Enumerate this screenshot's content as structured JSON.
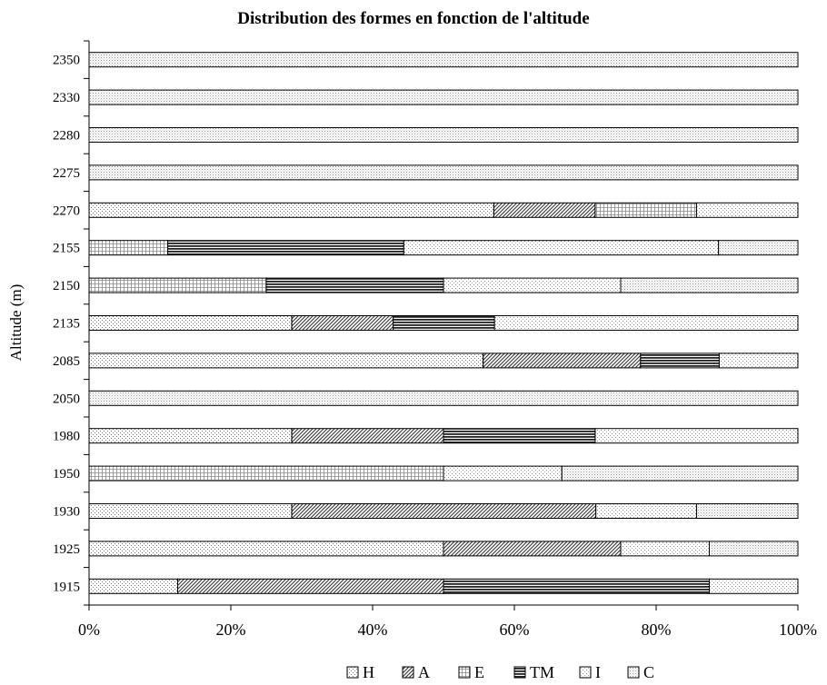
{
  "chart_data": {
    "type": "bar",
    "orientation": "horizontal",
    "stacked": "percent",
    "title": "Distribution des formes en fonction de l'altitude",
    "ylabel": "Altitude (m)",
    "xlabel": "",
    "xlim": [
      0,
      100
    ],
    "x_ticks": [
      "0%",
      "20%",
      "40%",
      "60%",
      "80%",
      "100%"
    ],
    "grid": false,
    "legend_position": "bottom",
    "categories": [
      "2350",
      "2330",
      "2280",
      "2275",
      "2270",
      "2155",
      "2150",
      "2135",
      "2085",
      "2050",
      "1980",
      "1950",
      "1930",
      "1925",
      "1915"
    ],
    "series": [
      {
        "name": "H",
        "pattern": "dots",
        "values": [
          0,
          0,
          0,
          0,
          57.1,
          0,
          0,
          28.6,
          55.6,
          0,
          28.6,
          0,
          28.6,
          50,
          12.5
        ]
      },
      {
        "name": "A",
        "pattern": "diagonal",
        "values": [
          0,
          0,
          0,
          0,
          14.3,
          0,
          0,
          14.3,
          22.2,
          0,
          21.4,
          0,
          42.9,
          25,
          37.5
        ]
      },
      {
        "name": "E",
        "pattern": "grid",
        "values": [
          0,
          0,
          0,
          0,
          14.3,
          11.1,
          25,
          0,
          0,
          0,
          0,
          50,
          0,
          0,
          0
        ]
      },
      {
        "name": "TM",
        "pattern": "horizontal",
        "values": [
          0,
          0,
          0,
          0,
          0,
          33.3,
          25,
          14.3,
          11.1,
          0,
          21.4,
          0,
          0,
          0,
          37.5
        ]
      },
      {
        "name": "I",
        "pattern": "light-dots",
        "values": [
          0,
          0,
          0,
          0,
          14.3,
          44.4,
          25,
          42.8,
          11.1,
          0,
          28.6,
          16.7,
          14.2,
          12.5,
          12.5
        ]
      },
      {
        "name": "C",
        "pattern": "fine-dots",
        "values": [
          100,
          100,
          100,
          100,
          0,
          11.2,
          25,
          0,
          0,
          100,
          0,
          33.3,
          14.3,
          12.5,
          0
        ]
      }
    ]
  }
}
